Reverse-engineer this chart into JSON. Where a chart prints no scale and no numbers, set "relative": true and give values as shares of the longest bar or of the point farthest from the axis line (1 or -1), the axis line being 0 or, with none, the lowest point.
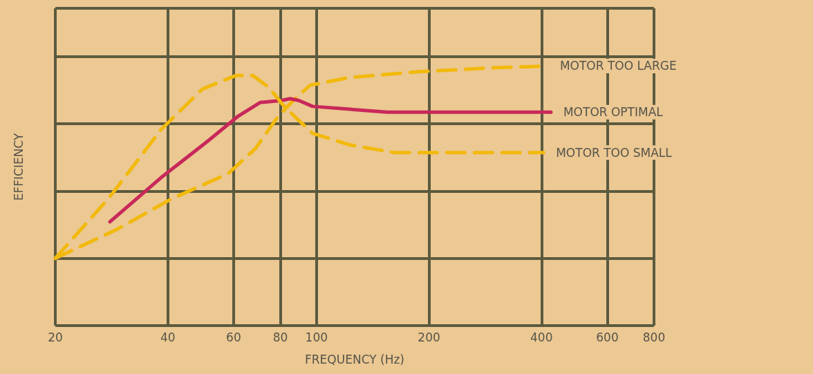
{
  "chart_data": {
    "type": "line",
    "xlabel": "FREQUENCY (Hz)",
    "ylabel": "EFFICIENCY",
    "log": "x",
    "relative": true,
    "grid": true,
    "legend": false,
    "marker": "none",
    "xlim": [
      20,
      800
    ],
    "xticks": [
      20,
      40,
      60,
      80,
      100,
      200,
      400,
      600,
      800
    ],
    "series": [
      {
        "name": "MOTOR TOO LARGE",
        "color": "#f2b90c",
        "line_style": "dashed",
        "x": [
          20,
          29.2,
          41.0,
          58.0,
          68.6,
          78.4,
          86.6,
          96.1,
          122.6,
          187,
          291,
          415
        ],
        "values": [
          0,
          0.15,
          0.31,
          0.44,
          0.57,
          0.73,
          0.82,
          0.9,
          0.94,
          0.97,
          0.99,
          1
        ]
      },
      {
        "name": "MOTOR OPTIMAL",
        "color": "#c8285a",
        "line_style": "solid",
        "x": [
          28.0,
          38.4,
          51.2,
          61.8,
          70.6,
          80.3,
          85.0,
          89.8,
          97.6,
          154.8,
          234,
          349,
          424
        ],
        "values": [
          0.19,
          0.42,
          0.61,
          0.74,
          0.81,
          0.82,
          0.83,
          0.82,
          0.79,
          0.76,
          0.76,
          0.76,
          0.76
        ]
      },
      {
        "name": "MOTOR TOO SMALL",
        "color": "#f2b90c",
        "line_style": "dashed",
        "x": [
          20,
          28.0,
          38.4,
          49.5,
          60.8,
          67.6,
          74.5,
          81.1,
          88.2,
          97.6,
          122.6,
          161.3,
          234,
          405
        ],
        "values": [
          0,
          0.32,
          0.67,
          0.88,
          0.95,
          0.95,
          0.89,
          0.8,
          0.73,
          0.65,
          0.59,
          0.55,
          0.55,
          0.55
        ]
      }
    ]
  }
}
